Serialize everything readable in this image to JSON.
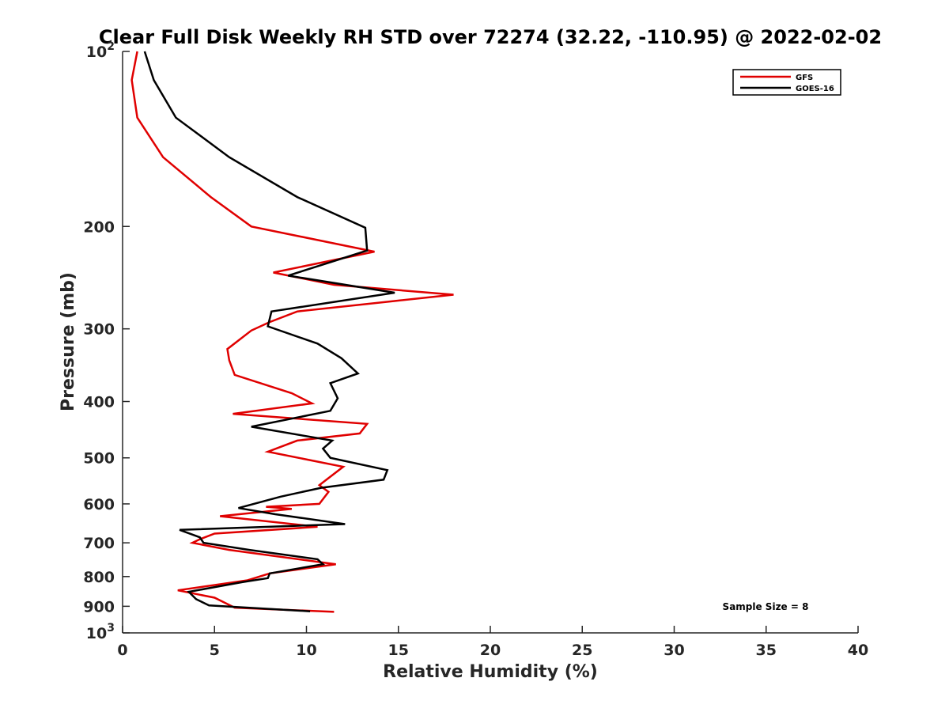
{
  "chart_data": {
    "type": "line",
    "title": "Clear Full Disk Weekly RH STD over 72274 (32.22, -110.95) @ 2022-02-02",
    "xlabel": "Relative Humidity (%)",
    "ylabel": "Pressure (mb)",
    "xlim": [
      0,
      40
    ],
    "ylim": [
      100,
      1000
    ],
    "y_scale": "log",
    "y_reversed": true,
    "x_ticks": [
      "0",
      "5",
      "10",
      "15",
      "20",
      "25",
      "30",
      "35",
      "40"
    ],
    "y_ticks": [
      {
        "value": 100,
        "base": "10",
        "exp": "2"
      },
      {
        "value": 200,
        "label": "200"
      },
      {
        "value": 300,
        "label": "300"
      },
      {
        "value": 400,
        "label": "400"
      },
      {
        "value": 500,
        "label": "500"
      },
      {
        "value": 600,
        "label": "600"
      },
      {
        "value": 700,
        "label": "700"
      },
      {
        "value": 800,
        "label": "800"
      },
      {
        "value": 900,
        "label": "900"
      },
      {
        "value": 1000,
        "base": "10",
        "exp": "3"
      }
    ],
    "legend_position": "top-right",
    "annotation": "Sample Size = 8",
    "series": [
      {
        "name": "GFS",
        "color": "#e00000",
        "x": [
          0.8,
          0.5,
          0.8,
          2.2,
          4.8,
          7.0,
          13.7,
          8.2,
          11.5,
          18.0,
          9.5,
          8.0,
          7.0,
          5.7,
          5.8,
          6.1,
          9.2,
          10.3,
          6.0,
          13.3,
          12.9,
          9.5,
          7.9,
          12.0,
          10.7,
          11.2,
          10.7,
          7.8,
          9.2,
          5.3,
          10.6,
          5.0,
          4.2,
          3.8,
          5.8,
          11.6,
          8.0,
          6.8,
          3.0,
          5.0,
          6.1,
          11.5
        ],
        "y": [
          100,
          112,
          130,
          152,
          178,
          200,
          221,
          240,
          252,
          262,
          280,
          292,
          302,
          325,
          340,
          360,
          387,
          403,
          420,
          437,
          454,
          467,
          488,
          518,
          557,
          572,
          600,
          607,
          612,
          630,
          657,
          675,
          690,
          700,
          720,
          762,
          790,
          812,
          845,
          870,
          905,
          920
        ]
      },
      {
        "name": "GOES-16",
        "color": "#000000",
        "x": [
          1.2,
          1.7,
          2.9,
          5.8,
          9.5,
          13.2,
          13.3,
          9.0,
          14.8,
          8.1,
          7.9,
          10.6,
          11.9,
          12.8,
          11.3,
          11.7,
          11.3,
          7.0,
          11.4,
          10.9,
          11.3,
          14.4,
          14.2,
          10.8,
          8.6,
          6.3,
          8.3,
          12.1,
          3.1,
          4.2,
          4.4,
          6.9,
          10.6,
          10.9,
          8.0,
          7.9,
          6.5,
          3.6,
          4.0,
          4.7,
          10.2
        ],
        "y": [
          100,
          112,
          130,
          152,
          178,
          201,
          220,
          243,
          260,
          280,
          297,
          318,
          337,
          358,
          372,
          395,
          415,
          442,
          467,
          482,
          500,
          525,
          545,
          563,
          583,
          610,
          625,
          650,
          665,
          685,
          700,
          720,
          747,
          762,
          790,
          805,
          818,
          850,
          875,
          897,
          918
        ]
      }
    ]
  }
}
